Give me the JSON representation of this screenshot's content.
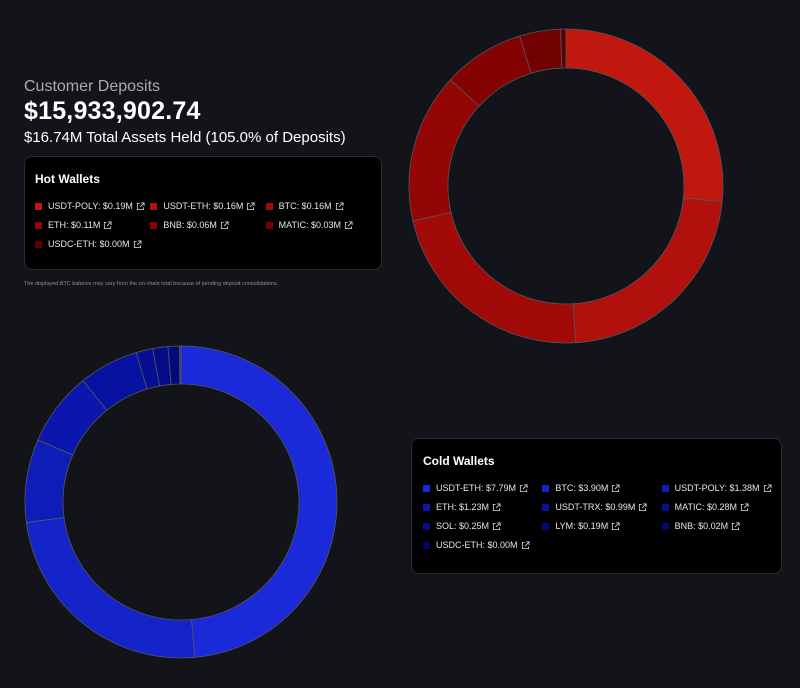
{
  "header": {
    "subtitle": "Customer Deposits",
    "total": "$15,933,902.74",
    "assets": "$16.74M Total Assets Held (105.0% of Deposits)"
  },
  "note": "The displayed BTC balance may vary from the on-chain total because of pending deposit consolidations.",
  "hot": {
    "title": "Hot Wallets",
    "items": [
      {
        "label": "USDT-POLY: $0.19M",
        "value": 0.19,
        "color": "#c0180f"
      },
      {
        "label": "USDT-ETH: $0.16M",
        "value": 0.16,
        "color": "#b2100c"
      },
      {
        "label": "BTC: $0.16M",
        "value": 0.16,
        "color": "#a20a08"
      },
      {
        "label": "ETH: $0.11M",
        "value": 0.11,
        "color": "#940606"
      },
      {
        "label": "BNB: $0.06M",
        "value": 0.06,
        "color": "#830303"
      },
      {
        "label": "MATIC: $0.03M",
        "value": 0.03,
        "color": "#720101"
      },
      {
        "label": "USDC-ETH: $0.00M",
        "value": 0.004,
        "color": "#5e0000"
      }
    ]
  },
  "cold": {
    "title": "Cold Wallets",
    "items": [
      {
        "label": "USDT-ETH: $7.79M",
        "value": 7.79,
        "color": "#1a2ad8"
      },
      {
        "label": "BTC: $3.90M",
        "value": 3.9,
        "color": "#1424c8"
      },
      {
        "label": "USDT-POLY: $1.38M",
        "value": 1.38,
        "color": "#0f1db8"
      },
      {
        "label": "ETH: $1.23M",
        "value": 1.23,
        "color": "#0b17ac"
      },
      {
        "label": "USDT-TRX: $0.99M",
        "value": 0.99,
        "color": "#0812a0"
      },
      {
        "label": "MATIC: $0.28M",
        "value": 0.28,
        "color": "#060e92"
      },
      {
        "label": "SOL: $0.25M",
        "value": 0.25,
        "color": "#050b86"
      },
      {
        "label": "LYM: $0.19M",
        "value": 0.19,
        "color": "#04097a"
      },
      {
        "label": "BNB: $0.02M",
        "value": 0.02,
        "color": "#03076c"
      },
      {
        "label": "USDC-ETH: $0.00M",
        "value": 0.004,
        "color": "#020560"
      }
    ]
  }
}
